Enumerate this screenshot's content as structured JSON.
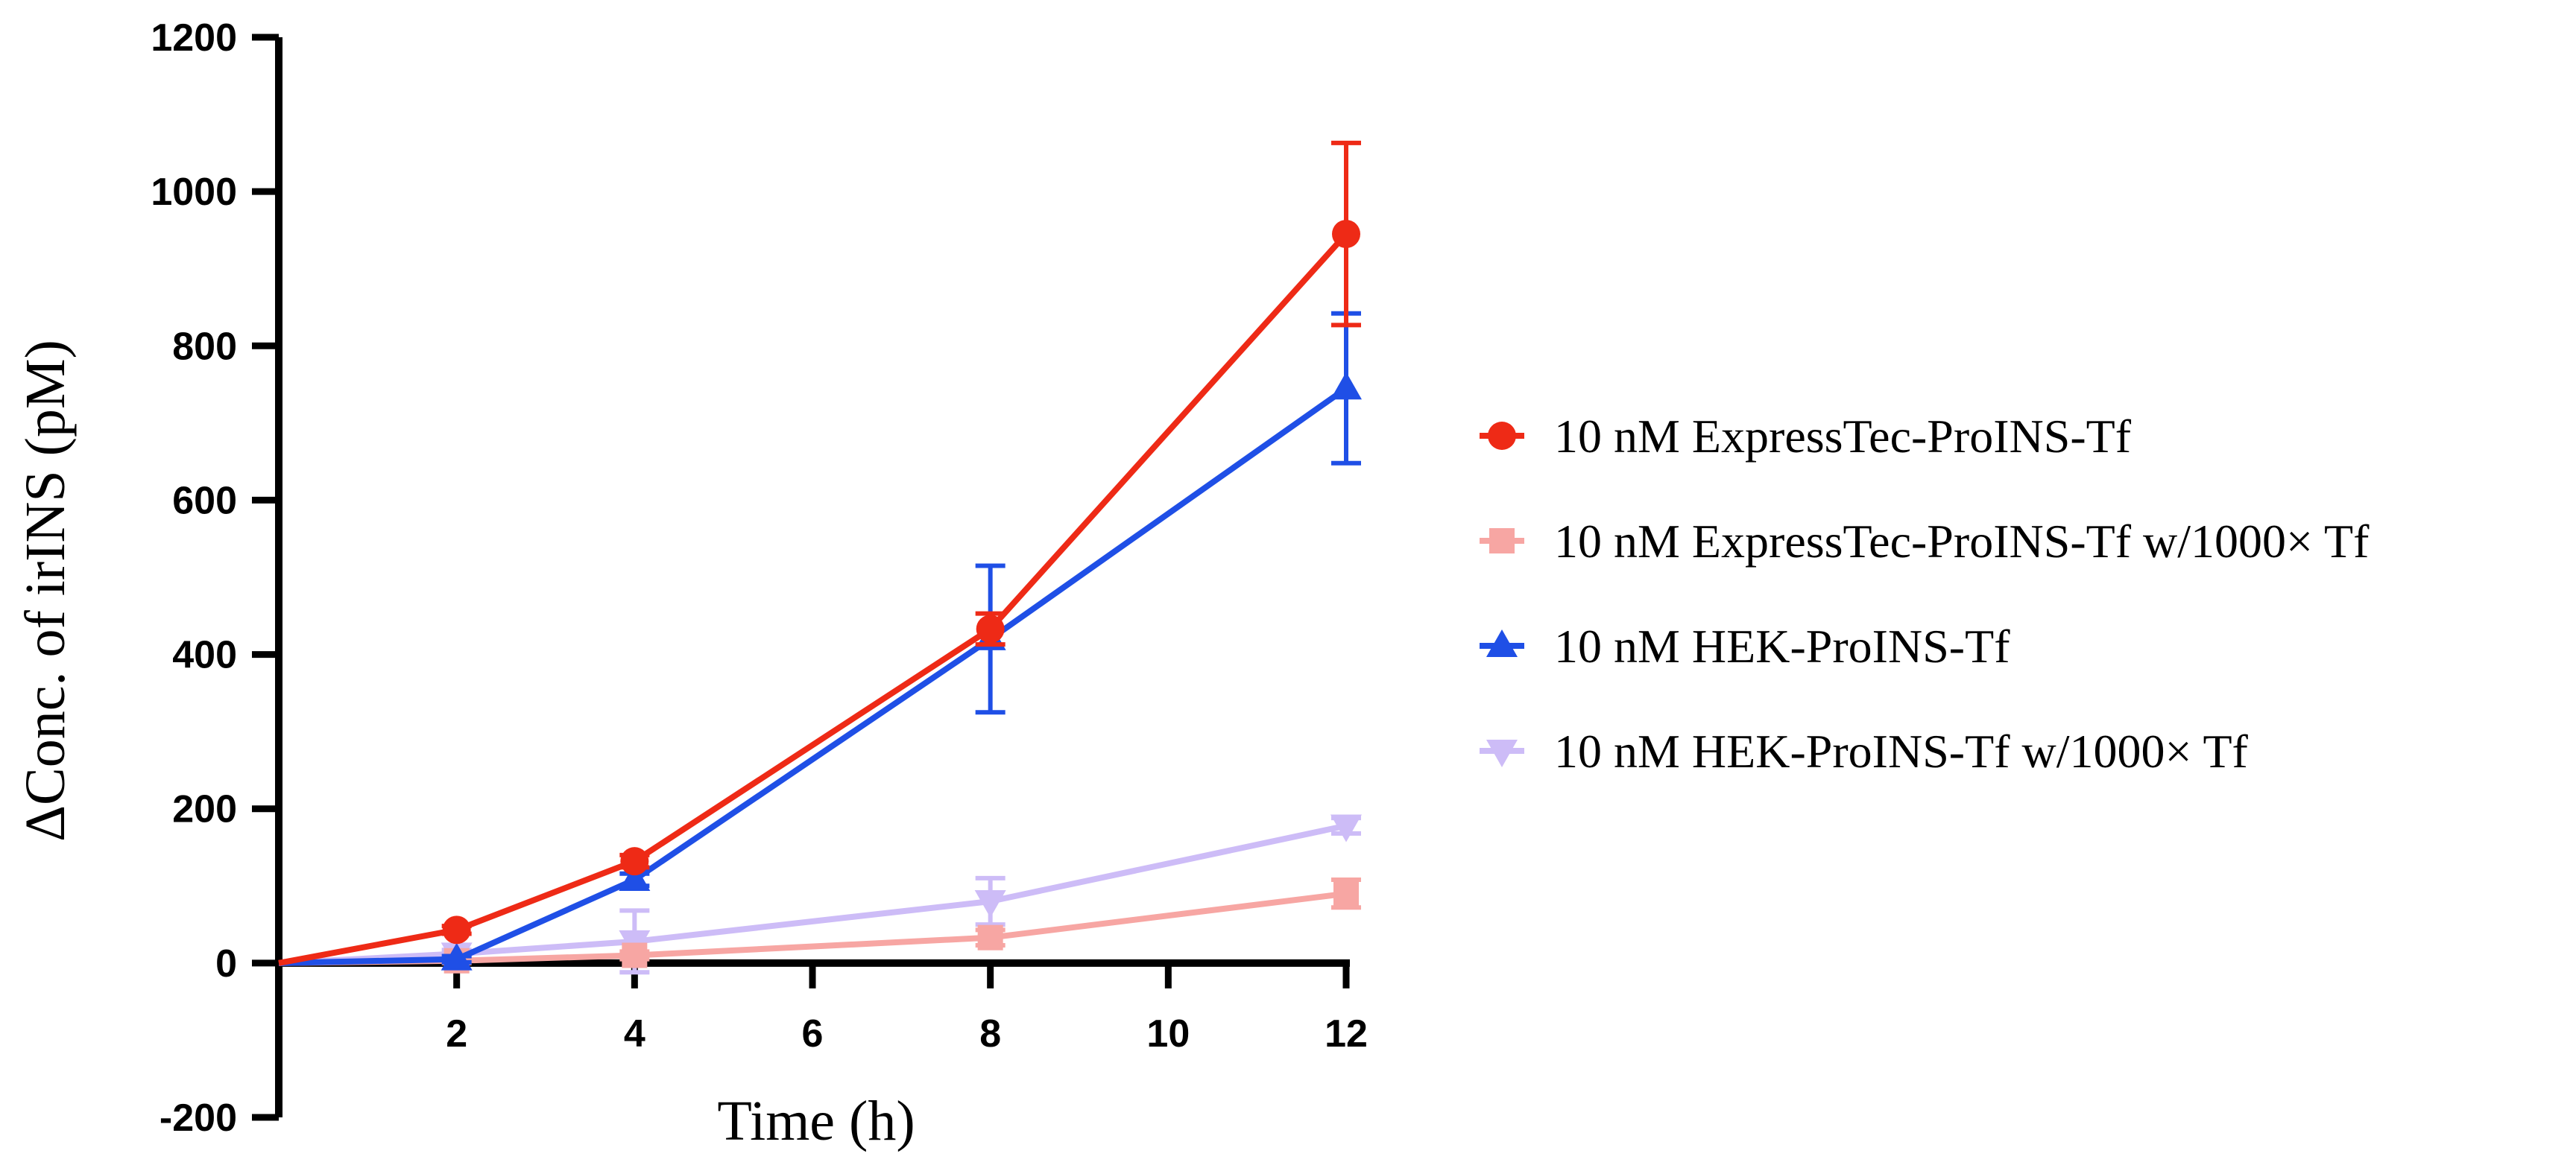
{
  "chart_data": {
    "type": "line",
    "title": "",
    "xlabel": "Time (h)",
    "ylabel": "ΔConc. of irINS (pM)",
    "xlim": [
      0,
      12
    ],
    "ylim": [
      -200,
      1200
    ],
    "xticks": [
      2,
      4,
      6,
      8,
      10,
      12
    ],
    "yticks": [
      -200,
      0,
      200,
      400,
      600,
      800,
      1000,
      1200
    ],
    "xtick_labels": [
      "2",
      "4",
      "6",
      "8",
      "10",
      "12"
    ],
    "ytick_labels": [
      "-200",
      "0",
      "200",
      "400",
      "600",
      "800",
      "1000",
      "1200"
    ],
    "legend_position": "right",
    "grid": false,
    "series": [
      {
        "name": "10 nM ExpressTec-ProINS-Tf",
        "color": "#ee2a16",
        "marker": "circle",
        "x": [
          0,
          2,
          4,
          8,
          12
        ],
        "y": [
          0,
          43,
          132,
          433,
          945
        ],
        "err": [
          0,
          5,
          8,
          20,
          118
        ]
      },
      {
        "name": "10 nM ExpressTec-ProINS-Tf w/1000× Tf",
        "color": "#f7a6a3",
        "marker": "square",
        "x": [
          0,
          2,
          4,
          8,
          12
        ],
        "y": [
          0,
          3,
          10,
          33,
          90
        ],
        "err": [
          0,
          3,
          5,
          10,
          18
        ]
      },
      {
        "name": "10 nM HEK-ProINS-Tf",
        "color": "#1f4fe6",
        "marker": "triangle-up",
        "x": [
          0,
          2,
          4,
          8,
          12
        ],
        "y": [
          0,
          5,
          108,
          420,
          745
        ],
        "err": [
          0,
          4,
          8,
          95,
          97
        ]
      },
      {
        "name": "10 nM HEK-ProINS-Tf w/1000× Tf",
        "color": "#cdbcf7",
        "marker": "triangle-down",
        "x": [
          0,
          2,
          4,
          8,
          12
        ],
        "y": [
          0,
          12,
          28,
          80,
          178
        ],
        "err": [
          0,
          5,
          40,
          30,
          10
        ]
      }
    ]
  }
}
